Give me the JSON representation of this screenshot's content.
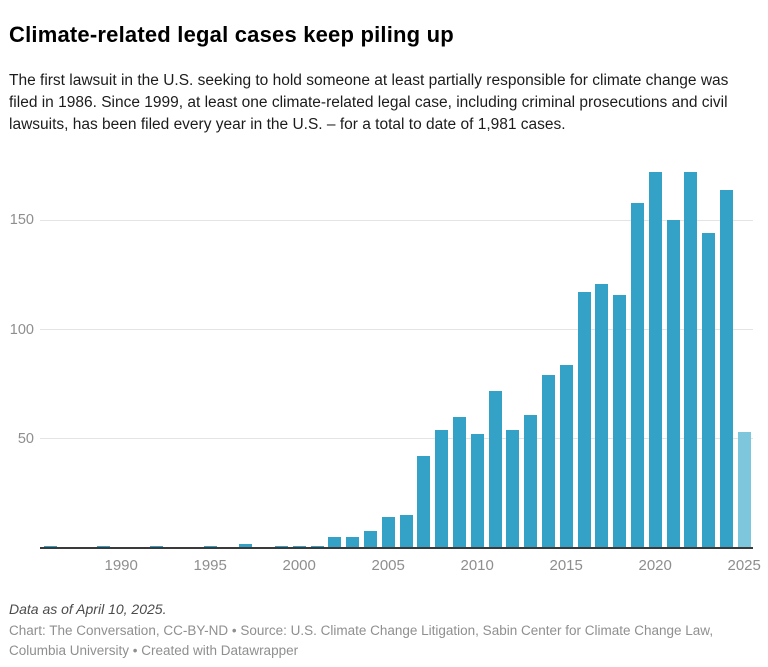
{
  "header": {
    "title": "Climate-related legal cases keep piling up",
    "description": "The first lawsuit in the U.S. seeking to hold someone at least partially responsible for climate change was filed in 1986. Since 1999, at least one climate-related legal case, including criminal prosecutions and civil lawsuits, has been filed every year in the U.S. – for a total to date of 1,981 cases."
  },
  "chart_data": {
    "type": "bar",
    "title": "Climate-related legal cases keep piling up",
    "xlabel": "",
    "ylabel": "",
    "years": [
      1986,
      1987,
      1988,
      1989,
      1990,
      1991,
      1992,
      1993,
      1994,
      1995,
      1996,
      1997,
      1998,
      1999,
      2000,
      2001,
      2002,
      2003,
      2004,
      2005,
      2006,
      2007,
      2008,
      2009,
      2010,
      2011,
      2012,
      2013,
      2014,
      2015,
      2016,
      2017,
      2018,
      2019,
      2020,
      2021,
      2022,
      2023,
      2024,
      2025
    ],
    "values": [
      1,
      0,
      0,
      1,
      0,
      0,
      1,
      0,
      0,
      1,
      0,
      2,
      0,
      1,
      1,
      1,
      5,
      5,
      8,
      14,
      15,
      42,
      54,
      60,
      52,
      72,
      54,
      61,
      79,
      84,
      117,
      121,
      116,
      158,
      172,
      150,
      172,
      144,
      164,
      53
    ],
    "total_cases": "1,981",
    "x_ticks": [
      1990,
      1995,
      2000,
      2005,
      2010,
      2015,
      2020,
      2025
    ],
    "y_ticks": [
      50,
      100,
      150
    ],
    "ylim": [
      0,
      180
    ],
    "xlim": [
      1985.5,
      2025.5
    ],
    "grid": "horizontal",
    "legend": "none",
    "partial_year": 2025,
    "colors": {
      "bar": "#34a2c7",
      "bar_partial_year": "#7dc6dc",
      "gridline": "#e4e4e4",
      "axis_line": "#3a3a3a",
      "axis_text": "#8e8e8e"
    }
  },
  "footer": {
    "note": "Data as of April 10, 2025.",
    "byline": "Chart: The Conversation, CC-BY-ND • Source: U.S. Climate Change Litigation, Sabin Center for Climate Change Law, Columbia University • Created with Datawrapper"
  }
}
